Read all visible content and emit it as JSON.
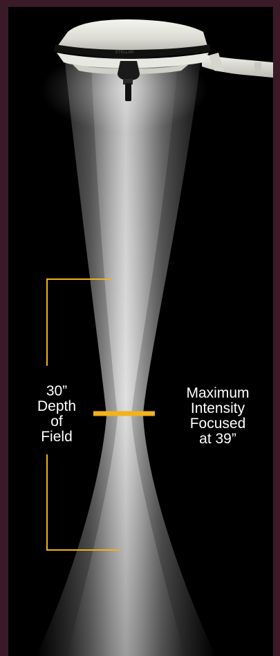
{
  "lamp": {
    "brand_text": "STELLAR"
  },
  "annotations": {
    "depth_of_field": {
      "lines": [
        "30”",
        "Depth",
        "of",
        "Field"
      ]
    },
    "max_intensity": {
      "lines": [
        "Maximum",
        "Intensity",
        "Focused",
        "at 39”"
      ]
    }
  },
  "colors": {
    "accent": "#f2b21c",
    "background": "#000000",
    "border": "#3a1a26",
    "text": "#ffffff"
  }
}
